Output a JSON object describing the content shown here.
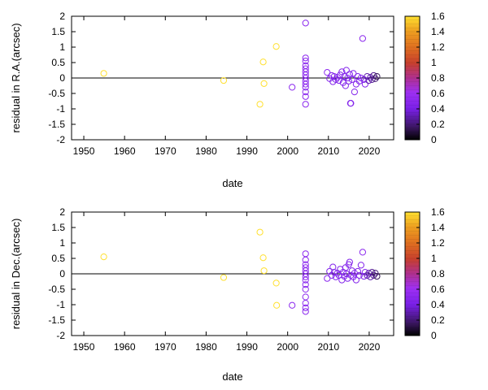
{
  "chart_data": [
    {
      "type": "scatter",
      "xlabel": "date",
      "ylabel": "residual in R.A.(arcsec)",
      "xlim": [
        1947,
        2026
      ],
      "ylim": [
        -2,
        2
      ],
      "xticks": [
        1950,
        1960,
        1970,
        1980,
        1990,
        2000,
        2010,
        2020
      ],
      "yticks": [
        -2,
        -1.5,
        -1,
        -0.5,
        0,
        0.5,
        1,
        1.5,
        2
      ],
      "zero_line": true,
      "colorbar": {
        "label_ticks": [
          0,
          0.2,
          0.4,
          0.6,
          0.8,
          1,
          1.2,
          1.4,
          1.6
        ],
        "range": [
          0,
          1.6
        ]
      },
      "points": [
        {
          "x": 1954.9,
          "y": 0.15,
          "c": 1.6
        },
        {
          "x": 1984.3,
          "y": -0.08,
          "c": 1.6
        },
        {
          "x": 1993.2,
          "y": -0.85,
          "c": 1.6
        },
        {
          "x": 1994.0,
          "y": 0.52,
          "c": 1.6
        },
        {
          "x": 1994.2,
          "y": -0.18,
          "c": 1.6
        },
        {
          "x": 1997.2,
          "y": 1.02,
          "c": 1.6
        },
        {
          "x": 2001.1,
          "y": -0.3,
          "c": 0.5
        },
        {
          "x": 2004.4,
          "y": 1.78,
          "c": 0.5
        },
        {
          "x": 2004.4,
          "y": 0.65,
          "c": 0.5
        },
        {
          "x": 2004.4,
          "y": 0.55,
          "c": 0.5
        },
        {
          "x": 2004.4,
          "y": 0.4,
          "c": 0.5
        },
        {
          "x": 2004.4,
          "y": 0.3,
          "c": 0.5
        },
        {
          "x": 2004.4,
          "y": 0.2,
          "c": 0.5
        },
        {
          "x": 2004.4,
          "y": 0.1,
          "c": 0.5
        },
        {
          "x": 2004.4,
          "y": 0.0,
          "c": 0.5
        },
        {
          "x": 2004.4,
          "y": -0.1,
          "c": 0.5
        },
        {
          "x": 2004.4,
          "y": -0.2,
          "c": 0.5
        },
        {
          "x": 2004.4,
          "y": -0.3,
          "c": 0.5
        },
        {
          "x": 2004.4,
          "y": -0.45,
          "c": 0.5
        },
        {
          "x": 2004.4,
          "y": -0.6,
          "c": 0.5
        },
        {
          "x": 2004.4,
          "y": -0.85,
          "c": 0.5
        },
        {
          "x": 2009.7,
          "y": 0.18,
          "c": 0.5
        },
        {
          "x": 2010.3,
          "y": -0.02,
          "c": 0.45
        },
        {
          "x": 2010.8,
          "y": 0.08,
          "c": 0.45
        },
        {
          "x": 2011.1,
          "y": -0.12,
          "c": 0.45
        },
        {
          "x": 2011.4,
          "y": 0.05,
          "c": 0.45
        },
        {
          "x": 2011.8,
          "y": -0.05,
          "c": 0.45
        },
        {
          "x": 2012.2,
          "y": 0.02,
          "c": 0.45
        },
        {
          "x": 2012.6,
          "y": -0.08,
          "c": 0.45
        },
        {
          "x": 2012.9,
          "y": 0.1,
          "c": 0.45
        },
        {
          "x": 2013.3,
          "y": 0.2,
          "c": 0.45
        },
        {
          "x": 2013.6,
          "y": -0.15,
          "c": 0.45
        },
        {
          "x": 2013.9,
          "y": 0.05,
          "c": 0.45
        },
        {
          "x": 2014.2,
          "y": -0.25,
          "c": 0.45
        },
        {
          "x": 2014.4,
          "y": 0.25,
          "c": 0.45
        },
        {
          "x": 2014.7,
          "y": 0.0,
          "c": 0.45
        },
        {
          "x": 2015.0,
          "y": -0.1,
          "c": 0.45
        },
        {
          "x": 2015.2,
          "y": 0.12,
          "c": 0.45
        },
        {
          "x": 2015.4,
          "y": -0.82,
          "c": 0.45
        },
        {
          "x": 2015.5,
          "y": -0.82,
          "c": 0.45
        },
        {
          "x": 2015.8,
          "y": -0.05,
          "c": 0.45
        },
        {
          "x": 2016.1,
          "y": 0.15,
          "c": 0.45
        },
        {
          "x": 2016.4,
          "y": -0.45,
          "c": 0.45
        },
        {
          "x": 2016.8,
          "y": -0.2,
          "c": 0.45
        },
        {
          "x": 2017.2,
          "y": 0.05,
          "c": 0.45
        },
        {
          "x": 2017.6,
          "y": -0.1,
          "c": 0.45
        },
        {
          "x": 2018.0,
          "y": 0.0,
          "c": 0.45
        },
        {
          "x": 2018.4,
          "y": 1.28,
          "c": 0.5
        },
        {
          "x": 2018.7,
          "y": -0.05,
          "c": 0.45
        },
        {
          "x": 2019.0,
          "y": -0.2,
          "c": 0.45
        },
        {
          "x": 2019.5,
          "y": 0.05,
          "c": 0.3
        },
        {
          "x": 2019.9,
          "y": -0.08,
          "c": 0.3
        },
        {
          "x": 2020.3,
          "y": 0.02,
          "c": 0.3
        },
        {
          "x": 2020.7,
          "y": -0.05,
          "c": 0.25
        },
        {
          "x": 2021.1,
          "y": 0.08,
          "c": 0.25
        },
        {
          "x": 2021.5,
          "y": -0.02,
          "c": 0.2
        },
        {
          "x": 2021.9,
          "y": 0.05,
          "c": 0.15
        }
      ]
    },
    {
      "type": "scatter",
      "xlabel": "date",
      "ylabel": "residual in Dec.(arcsec)",
      "xlim": [
        1947,
        2026
      ],
      "ylim": [
        -2,
        2
      ],
      "xticks": [
        1950,
        1960,
        1970,
        1980,
        1990,
        2000,
        2010,
        2020
      ],
      "yticks": [
        -2,
        -1.5,
        -1,
        -0.5,
        0,
        0.5,
        1,
        1.5,
        2
      ],
      "zero_line": true,
      "colorbar": {
        "label_ticks": [
          0,
          0.2,
          0.4,
          0.6,
          0.8,
          1,
          1.2,
          1.4,
          1.6
        ],
        "range": [
          0,
          1.6
        ]
      },
      "points": [
        {
          "x": 1954.9,
          "y": 0.55,
          "c": 1.6
        },
        {
          "x": 1984.3,
          "y": -0.12,
          "c": 1.6
        },
        {
          "x": 1993.2,
          "y": 1.35,
          "c": 1.6
        },
        {
          "x": 1994.0,
          "y": 0.52,
          "c": 1.6
        },
        {
          "x": 1994.2,
          "y": 0.1,
          "c": 1.6
        },
        {
          "x": 1997.2,
          "y": -0.3,
          "c": 1.6
        },
        {
          "x": 1997.3,
          "y": -1.02,
          "c": 1.6
        },
        {
          "x": 2001.1,
          "y": -1.02,
          "c": 0.5
        },
        {
          "x": 2004.4,
          "y": 0.65,
          "c": 0.5
        },
        {
          "x": 2004.4,
          "y": 0.45,
          "c": 0.5
        },
        {
          "x": 2004.4,
          "y": 0.3,
          "c": 0.5
        },
        {
          "x": 2004.4,
          "y": 0.2,
          "c": 0.5
        },
        {
          "x": 2004.4,
          "y": 0.1,
          "c": 0.5
        },
        {
          "x": 2004.4,
          "y": 0.0,
          "c": 0.5
        },
        {
          "x": 2004.4,
          "y": -0.1,
          "c": 0.5
        },
        {
          "x": 2004.4,
          "y": -0.2,
          "c": 0.5
        },
        {
          "x": 2004.4,
          "y": -0.35,
          "c": 0.5
        },
        {
          "x": 2004.4,
          "y": -0.5,
          "c": 0.5
        },
        {
          "x": 2004.4,
          "y": -0.75,
          "c": 0.5
        },
        {
          "x": 2004.4,
          "y": -0.95,
          "c": 0.5
        },
        {
          "x": 2004.4,
          "y": -1.1,
          "c": 0.5
        },
        {
          "x": 2004.4,
          "y": -1.22,
          "c": 0.5
        },
        {
          "x": 2009.7,
          "y": -0.15,
          "c": 0.5
        },
        {
          "x": 2010.3,
          "y": 0.08,
          "c": 0.45
        },
        {
          "x": 2010.8,
          "y": -0.05,
          "c": 0.45
        },
        {
          "x": 2011.1,
          "y": 0.22,
          "c": 0.45
        },
        {
          "x": 2011.4,
          "y": 0.05,
          "c": 0.45
        },
        {
          "x": 2011.8,
          "y": -0.1,
          "c": 0.45
        },
        {
          "x": 2012.2,
          "y": 0.02,
          "c": 0.45
        },
        {
          "x": 2012.6,
          "y": -0.05,
          "c": 0.45
        },
        {
          "x": 2012.9,
          "y": 0.15,
          "c": 0.45
        },
        {
          "x": 2013.3,
          "y": -0.2,
          "c": 0.45
        },
        {
          "x": 2013.6,
          "y": 0.05,
          "c": 0.45
        },
        {
          "x": 2013.9,
          "y": -0.08,
          "c": 0.45
        },
        {
          "x": 2014.2,
          "y": 0.2,
          "c": 0.45
        },
        {
          "x": 2014.4,
          "y": 0.0,
          "c": 0.45
        },
        {
          "x": 2014.7,
          "y": -0.15,
          "c": 0.45
        },
        {
          "x": 2015.0,
          "y": 0.3,
          "c": 0.45
        },
        {
          "x": 2015.2,
          "y": 0.38,
          "c": 0.45
        },
        {
          "x": 2015.5,
          "y": -0.05,
          "c": 0.45
        },
        {
          "x": 2015.8,
          "y": 0.1,
          "c": 0.45
        },
        {
          "x": 2016.1,
          "y": -0.1,
          "c": 0.45
        },
        {
          "x": 2016.4,
          "y": 0.02,
          "c": 0.45
        },
        {
          "x": 2016.8,
          "y": -0.2,
          "c": 0.45
        },
        {
          "x": 2017.2,
          "y": 0.08,
          "c": 0.45
        },
        {
          "x": 2017.6,
          "y": -0.05,
          "c": 0.45
        },
        {
          "x": 2018.0,
          "y": 0.28,
          "c": 0.45
        },
        {
          "x": 2018.4,
          "y": 0.7,
          "c": 0.5
        },
        {
          "x": 2018.7,
          "y": -0.08,
          "c": 0.45
        },
        {
          "x": 2019.0,
          "y": 0.05,
          "c": 0.45
        },
        {
          "x": 2019.5,
          "y": -0.05,
          "c": 0.3
        },
        {
          "x": 2019.9,
          "y": 0.02,
          "c": 0.3
        },
        {
          "x": 2020.3,
          "y": -0.1,
          "c": 0.3
        },
        {
          "x": 2020.7,
          "y": 0.05,
          "c": 0.25
        },
        {
          "x": 2021.1,
          "y": -0.05,
          "c": 0.25
        },
        {
          "x": 2021.5,
          "y": 0.02,
          "c": 0.2
        },
        {
          "x": 2021.9,
          "y": -0.08,
          "c": 0.15
        }
      ]
    }
  ]
}
